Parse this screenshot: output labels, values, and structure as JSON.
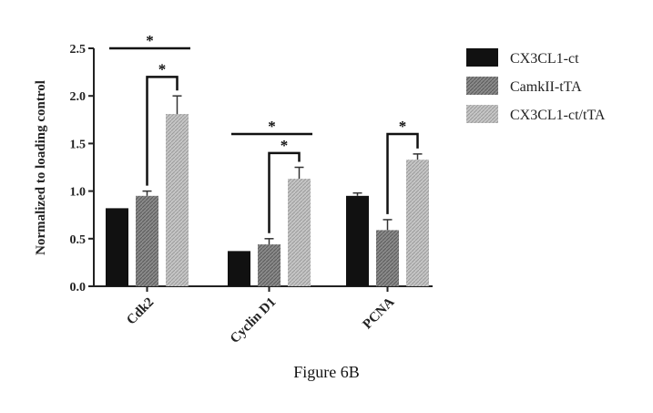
{
  "chart_data": {
    "type": "bar",
    "title": "",
    "xlabel": "",
    "ylabel": "Normalized to loading control",
    "ylim": [
      0,
      2.5
    ],
    "yticks": [
      "0.0",
      "0.5",
      "1.0",
      "1.5",
      "2.0",
      "2.5"
    ],
    "categories": [
      "Cdk2",
      "Cyclin D1",
      "PCNA"
    ],
    "series": [
      {
        "name": "CX3CL1-ct",
        "values": [
          0.82,
          0.37,
          0.95
        ],
        "errors": [
          0.0,
          0.0,
          0.03
        ],
        "color": "#111111",
        "pattern": "solid"
      },
      {
        "name": "CamkII-tTA",
        "values": [
          0.95,
          0.44,
          0.59
        ],
        "errors": [
          0.05,
          0.06,
          0.11
        ],
        "color": "#7f7f7f",
        "pattern": "hatch-dark"
      },
      {
        "name": "CX3CL1-ct/tTA",
        "values": [
          1.81,
          1.13,
          1.33
        ],
        "errors": [
          0.19,
          0.12,
          0.06
        ],
        "color": "#bdbdbd",
        "pattern": "hatch-light"
      }
    ],
    "significance": [
      {
        "category": "Cdk2",
        "from_series": 0,
        "to_series": 2,
        "style": "line",
        "level": 2.5,
        "label": "*"
      },
      {
        "category": "Cdk2",
        "from_series": 1,
        "to_series": 2,
        "style": "bracket",
        "level": 2.2,
        "label": "*"
      },
      {
        "category": "Cyclin D1",
        "from_series": 0,
        "to_series": 2,
        "style": "line",
        "level": 1.6,
        "label": "*"
      },
      {
        "category": "Cyclin D1",
        "from_series": 1,
        "to_series": 2,
        "style": "bracket",
        "level": 1.4,
        "label": "*"
      },
      {
        "category": "PCNA",
        "from_series": 1,
        "to_series": 2,
        "style": "bracket",
        "level": 1.6,
        "label": "*"
      }
    ],
    "legend_position": "top-right",
    "grid": false
  },
  "caption": "Figure 6B"
}
